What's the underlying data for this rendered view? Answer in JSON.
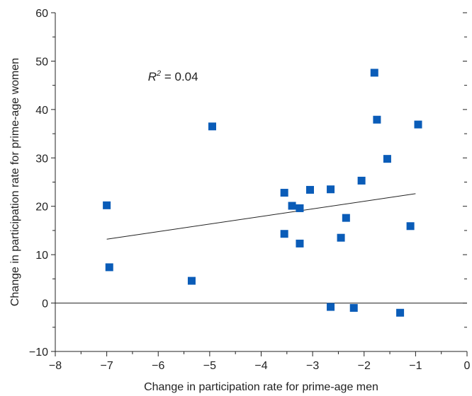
{
  "chart_data": {
    "type": "scatter",
    "xlabel": "Change in participation rate for prime-age men",
    "ylabel": "Change in participation rate for prime-age women",
    "xlim": [
      -8,
      0
    ],
    "ylim": [
      -10,
      60
    ],
    "x_ticks": [
      -8,
      -7,
      -6,
      -5,
      -4,
      -3,
      -2,
      -1,
      0
    ],
    "x_tick_labels": [
      "−8",
      "−7",
      "−6",
      "−5",
      "−4",
      "−3",
      "−2",
      "−1",
      "0"
    ],
    "y_ticks": [
      -10,
      0,
      10,
      20,
      30,
      40,
      50,
      60
    ],
    "y_tick_labels": [
      "−10",
      "0",
      "10",
      "20",
      "30",
      "40",
      "50",
      "60"
    ],
    "annotation": {
      "text_var": "R",
      "text_sup": "2",
      "text_rest": " = 0.04",
      "x": -6.2,
      "y": 46
    },
    "zero_line": true,
    "marker_color": "#0a5cb8",
    "trend_line": {
      "x": [
        -7.0,
        -1.0
      ],
      "y": [
        13.2,
        22.6
      ]
    },
    "points": [
      {
        "x": -7.0,
        "y": 20.2
      },
      {
        "x": -6.95,
        "y": 7.4
      },
      {
        "x": -5.35,
        "y": 4.6
      },
      {
        "x": -4.95,
        "y": 36.5
      },
      {
        "x": -3.55,
        "y": 22.8
      },
      {
        "x": -3.55,
        "y": 14.3
      },
      {
        "x": -3.4,
        "y": 20.1
      },
      {
        "x": -3.25,
        "y": 19.6
      },
      {
        "x": -3.25,
        "y": 12.3
      },
      {
        "x": -3.05,
        "y": 23.4
      },
      {
        "x": -2.65,
        "y": 23.5
      },
      {
        "x": -2.65,
        "y": -0.8
      },
      {
        "x": -2.45,
        "y": 13.5
      },
      {
        "x": -2.35,
        "y": 17.6
      },
      {
        "x": -2.2,
        "y": -1.0
      },
      {
        "x": -2.05,
        "y": 25.3
      },
      {
        "x": -1.8,
        "y": 47.6
      },
      {
        "x": -1.75,
        "y": 37.9
      },
      {
        "x": -1.55,
        "y": 29.8
      },
      {
        "x": -1.3,
        "y": -2.0
      },
      {
        "x": -1.1,
        "y": 15.9
      },
      {
        "x": -0.95,
        "y": 36.9
      }
    ]
  }
}
